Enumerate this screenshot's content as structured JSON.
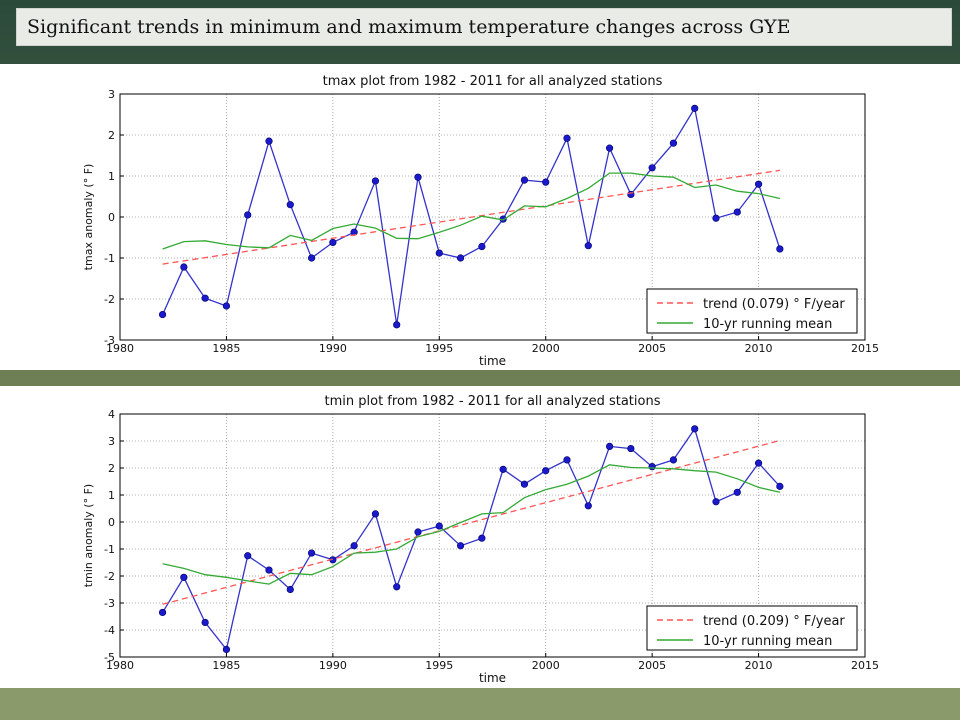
{
  "banner": {
    "title": "Significant trends in minimum and maximum temperature changes across GYE"
  },
  "chart_data": [
    {
      "type": "line",
      "title": "tmax plot from 1982 - 2011 for all analyzed stations",
      "xlabel": "time",
      "ylabel": "tmax anomaly (° F)",
      "xlim": [
        1980,
        2015
      ],
      "ylim": [
        -3,
        3
      ],
      "xticks": [
        1980,
        1985,
        1990,
        1995,
        2000,
        2005,
        2010,
        2015
      ],
      "yticks": [
        -3,
        -2,
        -1,
        0,
        1,
        2,
        3
      ],
      "grid": true,
      "legend_position": "lower-right",
      "series": [
        {
          "role": "observed",
          "color": "#3333cc",
          "x": [
            1982,
            1983,
            1984,
            1985,
            1986,
            1987,
            1988,
            1989,
            1990,
            1991,
            1992,
            1993,
            1994,
            1995,
            1996,
            1997,
            1998,
            1999,
            2000,
            2001,
            2002,
            2003,
            2004,
            2005,
            2006,
            2007,
            2008,
            2009,
            2010,
            2011
          ],
          "values": [
            -2.38,
            -1.22,
            -1.98,
            -2.17,
            0.05,
            1.85,
            0.3,
            -1.0,
            -0.62,
            -0.37,
            0.88,
            -2.63,
            0.97,
            -0.88,
            -1.0,
            -0.72,
            -0.05,
            0.9,
            0.85,
            1.92,
            -0.7,
            1.68,
            0.55,
            1.2,
            1.8,
            2.65,
            -0.03,
            0.12,
            0.8,
            -0.78
          ]
        },
        {
          "name": "trend (0.079) ° F/year",
          "role": "trend",
          "color": "#ff5555",
          "x": [
            1982,
            2011
          ],
          "values": [
            -1.15,
            1.14
          ]
        },
        {
          "name": "10-yr running mean",
          "role": "running_mean",
          "color": "#33aa33",
          "x": [
            1982,
            1983,
            1984,
            1985,
            1986,
            1987,
            1988,
            1989,
            1990,
            1991,
            1992,
            1993,
            1994,
            1995,
            1996,
            1997,
            1998,
            1999,
            2000,
            2001,
            2002,
            2003,
            2004,
            2005,
            2006,
            2007,
            2008,
            2009,
            2010,
            2011
          ],
          "values": [
            -0.78,
            -0.6,
            -0.58,
            -0.67,
            -0.73,
            -0.75,
            -0.45,
            -0.57,
            -0.28,
            -0.17,
            -0.27,
            -0.52,
            -0.53,
            -0.37,
            -0.2,
            0.02,
            -0.07,
            0.27,
            0.25,
            0.45,
            0.7,
            1.07,
            1.07,
            1.0,
            0.97,
            0.72,
            0.78,
            0.63,
            0.57,
            0.45
          ]
        }
      ]
    },
    {
      "type": "line",
      "title": "tmin plot from 1982 - 2011 for all analyzed stations",
      "xlabel": "time",
      "ylabel": "tmin anomaly (° F)",
      "xlim": [
        1980,
        2015
      ],
      "ylim": [
        -5,
        4
      ],
      "xticks": [
        1980,
        1985,
        1990,
        1995,
        2000,
        2005,
        2010,
        2015
      ],
      "yticks": [
        -5,
        -4,
        -3,
        -2,
        -1,
        0,
        1,
        2,
        3,
        4
      ],
      "grid": true,
      "legend_position": "lower-right",
      "series": [
        {
          "role": "observed",
          "color": "#3333cc",
          "x": [
            1982,
            1983,
            1984,
            1985,
            1986,
            1987,
            1988,
            1989,
            1990,
            1991,
            1992,
            1993,
            1994,
            1995,
            1996,
            1997,
            1998,
            1999,
            2000,
            2001,
            2002,
            2003,
            2004,
            2005,
            2006,
            2007,
            2008,
            2009,
            2010,
            2011
          ],
          "values": [
            -3.35,
            -2.05,
            -3.72,
            -4.72,
            -1.25,
            -1.78,
            -2.5,
            -1.15,
            -1.4,
            -0.88,
            0.3,
            -2.4,
            -0.37,
            -0.15,
            -0.88,
            -0.6,
            1.95,
            1.4,
            1.9,
            2.3,
            0.6,
            2.8,
            2.72,
            2.05,
            2.3,
            3.45,
            0.75,
            1.1,
            2.18,
            1.32
          ]
        },
        {
          "name": "trend (0.209) ° F/year",
          "role": "trend",
          "color": "#ff5555",
          "x": [
            1982,
            2011
          ],
          "values": [
            -3.05,
            3.02
          ]
        },
        {
          "name": "10-yr running mean",
          "role": "running_mean",
          "color": "#33aa33",
          "x": [
            1982,
            1983,
            1984,
            1985,
            1986,
            1987,
            1988,
            1989,
            1990,
            1991,
            1992,
            1993,
            1994,
            1995,
            1996,
            1997,
            1998,
            1999,
            2000,
            2001,
            2002,
            2003,
            2004,
            2005,
            2006,
            2007,
            2008,
            2009,
            2010,
            2011
          ],
          "values": [
            -1.55,
            -1.72,
            -1.95,
            -2.05,
            -2.18,
            -2.3,
            -1.9,
            -1.95,
            -1.65,
            -1.15,
            -1.12,
            -1.0,
            -0.55,
            -0.35,
            -0.02,
            0.3,
            0.35,
            0.9,
            1.2,
            1.4,
            1.7,
            2.12,
            2.02,
            2.0,
            1.97,
            1.9,
            1.85,
            1.6,
            1.28,
            1.1
          ]
        }
      ]
    }
  ]
}
